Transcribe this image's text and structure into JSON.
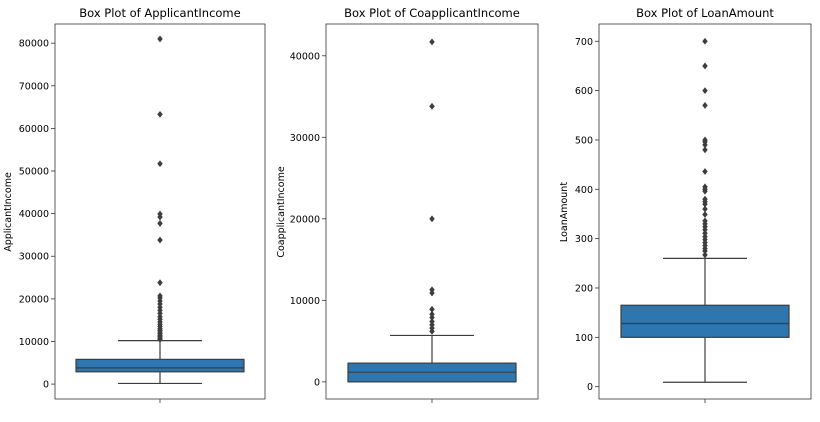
{
  "chart_data": [
    {
      "type": "box",
      "title": "Box Plot of ApplicantIncome",
      "ylabel": "ApplicantIncome",
      "xlabel": "",
      "ylim": [
        -3500,
        84500
      ],
      "yticks": [
        0,
        10000,
        20000,
        30000,
        40000,
        50000,
        60000,
        70000,
        80000
      ],
      "ytick_labels": [
        "0",
        "10000",
        "20000",
        "30000",
        "40000",
        "50000",
        "60000",
        "70000",
        "80000"
      ],
      "box": {
        "whisker_low": 150,
        "q1": 2880,
        "median": 3810,
        "q3": 5800,
        "whisker_high": 10200
      },
      "fliers": [
        10500,
        10800,
        11100,
        11400,
        11800,
        12200,
        12600,
        13000,
        13500,
        14000,
        14600,
        15200,
        15800,
        16600,
        17300,
        18000,
        18800,
        19500,
        20200,
        20700,
        23800,
        33800,
        37700,
        39200,
        39900,
        51700,
        63300,
        81000
      ],
      "color": "#2e76b0"
    },
    {
      "type": "box",
      "title": "Box Plot of CoapplicantIncome",
      "ylabel": "CoapplicantIncome",
      "xlabel": "",
      "ylim": [
        -2100,
        43900
      ],
      "yticks": [
        0,
        10000,
        20000,
        30000,
        40000
      ],
      "ytick_labels": [
        "0",
        "10000",
        "20000",
        "30000",
        "40000"
      ],
      "box": {
        "whisker_low": 0,
        "q1": 0,
        "median": 1190,
        "q3": 2300,
        "whisker_high": 5700
      },
      "fliers": [
        6200,
        6600,
        7000,
        7400,
        7900,
        8300,
        8900,
        10900,
        11300,
        20000,
        33800,
        41700
      ],
      "color": "#2e76b0"
    },
    {
      "type": "box",
      "title": "Box Plot of LoanAmount",
      "ylabel": "LoanAmount",
      "xlabel": "",
      "ylim": [
        -25,
        735
      ],
      "yticks": [
        0,
        100,
        200,
        300,
        400,
        500,
        600,
        700
      ],
      "ytick_labels": [
        "0",
        "100",
        "200",
        "300",
        "400",
        "500",
        "600",
        "700"
      ],
      "box": {
        "whisker_low": 9,
        "q1": 100,
        "median": 128,
        "q3": 165,
        "whisker_high": 260
      },
      "fliers": [
        267,
        275,
        280,
        286,
        292,
        298,
        304,
        311,
        318,
        324,
        330,
        336,
        349,
        360,
        370,
        375,
        380,
        396,
        400,
        405,
        436,
        480,
        490,
        496,
        500,
        570,
        600,
        650,
        700
      ],
      "color": "#2e76b0"
    }
  ]
}
